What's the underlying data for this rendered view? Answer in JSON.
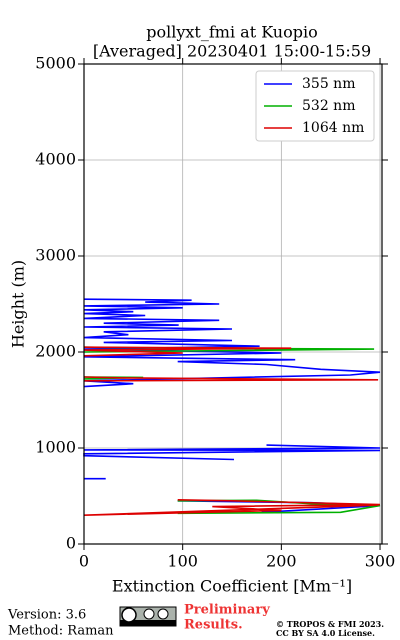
{
  "chart_data": {
    "type": "line",
    "title": "pollyxt_fmi at Kuopio",
    "subtitle": "[Averaged] 20230401 15:00-15:59",
    "xlabel": "Extinction Coefficient [Mm⁻¹]",
    "ylabel": "Height (m)",
    "xlim": [
      0,
      302
    ],
    "ylim": [
      0,
      5000
    ],
    "xticks": [
      0,
      100,
      200,
      300
    ],
    "yticks": [
      0,
      1000,
      2000,
      3000,
      4000,
      5000
    ],
    "grid": true,
    "legend": "upper right",
    "series": [
      {
        "name": "355 nm",
        "color": "#0000ff",
        "x": [
          0,
          109,
          62,
          137,
          0,
          100,
          0,
          50,
          0,
          62,
          0,
          137,
          20,
          96,
          0,
          150,
          20,
          45,
          0,
          150,
          20,
          178,
          0,
          200,
          0,
          214,
          95,
          185,
          240,
          300,
          270,
          0,
          50,
          0,
          null,
          185,
          300,
          0,
          300,
          0,
          0,
          152,
          null,
          0,
          22,
          null,
          95,
          130,
          230,
          300,
          180
        ],
        "y": [
          2550,
          2540,
          2520,
          2500,
          2480,
          2460,
          2440,
          2420,
          2400,
          2380,
          2350,
          2330,
          2300,
          2280,
          2260,
          2240,
          2210,
          2180,
          2150,
          2120,
          2100,
          2060,
          2030,
          1990,
          1950,
          1920,
          1900,
          1870,
          1820,
          1790,
          1760,
          1700,
          1670,
          1640,
          null,
          1030,
          1000,
          980,
          975,
          940,
          920,
          880,
          null,
          680,
          680,
          null,
          450,
          445,
          430,
          400,
          330
        ]
      },
      {
        "name": "532 nm",
        "color": "#00b000",
        "x": [
          0,
          100,
          294,
          100,
          0,
          null,
          0,
          60,
          0,
          null,
          95,
          175,
          230,
          300,
          260,
          95
        ],
        "y": [
          2050,
          2040,
          2030,
          2010,
          2000,
          null,
          1740,
          1735,
          1720,
          null,
          450,
          455,
          420,
          400,
          330,
          320
        ]
      },
      {
        "name": "1064 nm",
        "color": "#dd0000",
        "x": [
          0,
          210,
          0,
          100,
          0,
          null,
          0,
          40,
          298,
          0,
          null,
          95,
          150,
          300,
          130,
          200,
          0,
          298
        ],
        "y": [
          2050,
          2040,
          2020,
          1990,
          1960,
          null,
          1740,
          1730,
          1710,
          1700,
          null,
          460,
          450,
          410,
          390,
          350,
          300,
          405
        ]
      }
    ]
  },
  "footer": {
    "version": "Version: 3.6",
    "method": "Method: Raman",
    "preliminary": [
      "Preliminary",
      "Results."
    ],
    "copyright": [
      "© TROPOS & FMI 2023.",
      "CC BY SA 4.0 License."
    ]
  }
}
